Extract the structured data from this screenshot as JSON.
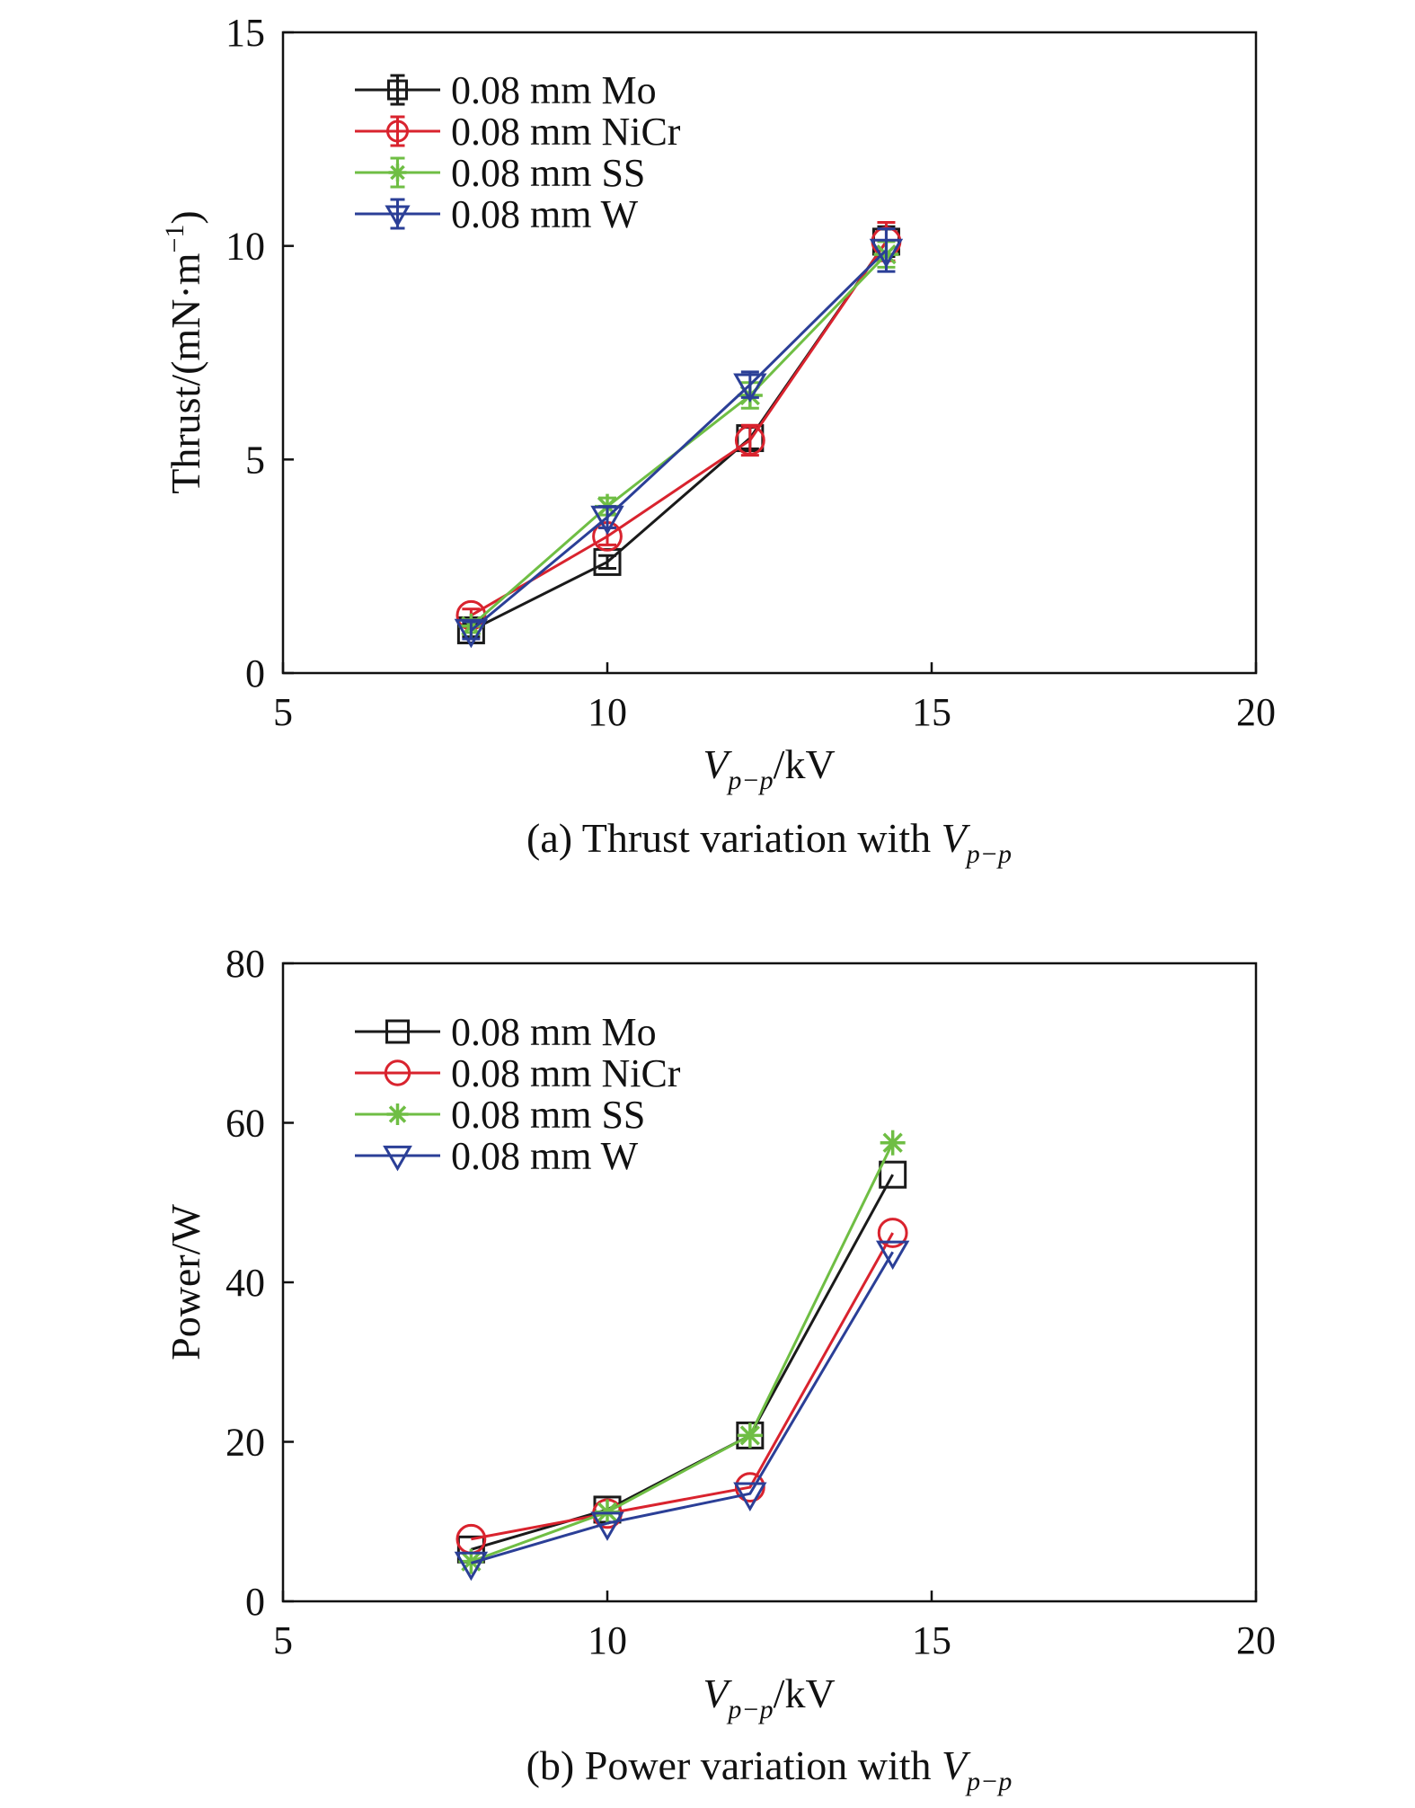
{
  "chart_data": [
    {
      "id": "a",
      "type": "line",
      "caption": {
        "prefix": "(a) Thrust variation with ",
        "var": "V",
        "sub": "p−p"
      },
      "xlabel": {
        "var": "V",
        "sub": "p−p",
        "unit": "/kV"
      },
      "ylabel": {
        "base": "Thrust/(mN·m",
        "sup": "−1",
        "end": ")"
      },
      "xlim": [
        5,
        20
      ],
      "ylim": [
        0,
        15
      ],
      "xticks": [
        5,
        10,
        15,
        20
      ],
      "yticks": [
        0,
        5,
        10,
        15
      ],
      "error_bars": true,
      "legend_position": "top-left",
      "series": [
        {
          "name": "0.08 mm Mo",
          "color": "#1a1a1a",
          "marker": "square",
          "x": [
            7.9,
            10.0,
            12.2,
            14.3
          ],
          "y": [
            1.0,
            2.6,
            5.5,
            10.1
          ],
          "err": [
            0.15,
            0.15,
            0.25,
            0.35
          ]
        },
        {
          "name": "0.08 mm NiCr",
          "color": "#d9232e",
          "marker": "circle",
          "x": [
            7.9,
            10.0,
            12.2,
            14.3
          ],
          "y": [
            1.35,
            3.2,
            5.45,
            10.1
          ],
          "err": [
            0.15,
            0.2,
            0.35,
            0.45
          ]
        },
        {
          "name": "0.08 mm SS",
          "color": "#6fbe44",
          "marker": "star",
          "x": [
            7.9,
            10.0,
            12.2,
            14.3
          ],
          "y": [
            1.1,
            3.9,
            6.5,
            9.8
          ],
          "err": [
            0.15,
            0.2,
            0.3,
            0.3
          ]
        },
        {
          "name": "0.08 mm W",
          "color": "#2b3f97",
          "marker": "triangle-down",
          "x": [
            7.9,
            10.0,
            12.2,
            14.3
          ],
          "y": [
            1.0,
            3.65,
            6.75,
            9.9
          ],
          "err": [
            0.2,
            0.25,
            0.3,
            0.5
          ]
        }
      ]
    },
    {
      "id": "b",
      "type": "line",
      "caption": {
        "prefix": "(b) Power variation with ",
        "var": "V",
        "sub": "p−p"
      },
      "xlabel": {
        "var": "V",
        "sub": "p−p",
        "unit": "/kV"
      },
      "ylabel": {
        "base": "Power/W",
        "sup": "",
        "end": ""
      },
      "xlim": [
        5,
        20
      ],
      "ylim": [
        0,
        80
      ],
      "xticks": [
        5,
        10,
        15,
        20
      ],
      "yticks": [
        0,
        20,
        40,
        60,
        80
      ],
      "error_bars": false,
      "legend_position": "top-left",
      "series": [
        {
          "name": "0.08 mm Mo",
          "color": "#1a1a1a",
          "marker": "square",
          "x": [
            7.9,
            10.0,
            12.2,
            14.4
          ],
          "y": [
            6.5,
            11.5,
            20.8,
            53.5
          ]
        },
        {
          "name": "0.08 mm NiCr",
          "color": "#d9232e",
          "marker": "circle",
          "x": [
            7.9,
            10.0,
            12.2,
            14.4
          ],
          "y": [
            7.8,
            11.0,
            14.3,
            46.2
          ]
        },
        {
          "name": "0.08 mm SS",
          "color": "#6fbe44",
          "marker": "star",
          "x": [
            7.9,
            10.0,
            12.2,
            14.4
          ],
          "y": [
            5.0,
            11.2,
            20.8,
            57.5
          ]
        },
        {
          "name": "0.08 mm W",
          "color": "#2b3f97",
          "marker": "triangle-down",
          "x": [
            7.9,
            10.0,
            12.2,
            14.4
          ],
          "y": [
            4.8,
            9.8,
            13.5,
            43.8
          ]
        }
      ]
    }
  ]
}
